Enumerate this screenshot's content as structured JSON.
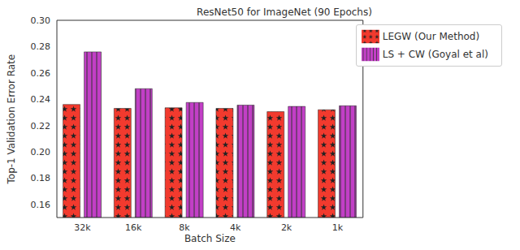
{
  "chart_data": {
    "type": "bar",
    "title": "ResNet50 for ImageNet (90 Epochs)",
    "x_label": "Batch Size",
    "y_label": "Top-1 Validation Error Rate",
    "categories": [
      "32k",
      "16k",
      "8k",
      "4k",
      "2k",
      "1k"
    ],
    "series": [
      {
        "name": "LEGW (Our Method)",
        "color": "#f23a2e",
        "values": [
          0.236,
          0.233,
          0.2335,
          0.233,
          0.2305,
          0.232
        ]
      },
      {
        "name": "LS + CW (Goyal et al)",
        "color": "#c23fc6",
        "values": [
          0.276,
          0.248,
          0.2375,
          0.2355,
          0.2345,
          0.235
        ]
      }
    ],
    "ylim": [
      0.15,
      0.3
    ],
    "yticks": [
      0.16,
      0.18,
      {
        "value": 0.2,
        "label": "0.20"
      },
      0.22,
      0.24,
      0.26,
      0.28,
      {
        "value": 0.3,
        "label": "0.30"
      }
    ],
    "grid": false,
    "legend": "upper right"
  }
}
